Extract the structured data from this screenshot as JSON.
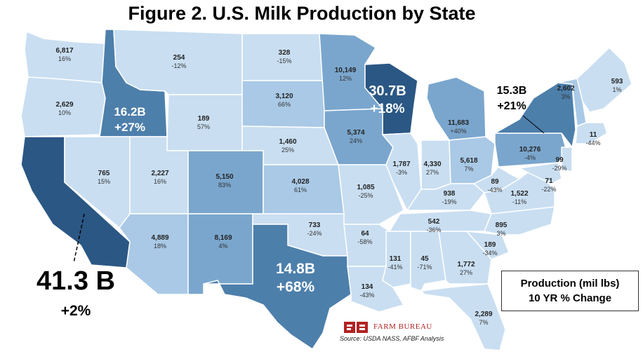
{
  "title": "Figure 2. U.S. Milk Production by State",
  "legend": {
    "line1": "Production (mil lbs)",
    "line2": "10 YR % Change"
  },
  "brand": "FARM BUREAU",
  "source": "Source:  USDA NASS, AFBF Analysis",
  "colors": {
    "darkest": "#2b5784",
    "dark": "#4d7fab",
    "mid": "#7aa6cd",
    "light": "#a9c9e6",
    "lightest": "#c9def1"
  },
  "states": {
    "WA": {
      "value": "6,817",
      "change": "16%"
    },
    "OR": {
      "value": "2,629",
      "change": "10%"
    },
    "ID": {
      "value": "16.2B",
      "change": "+27%"
    },
    "MT": {
      "value": "254",
      "change": "-12%"
    },
    "WY": {
      "value": "189",
      "change": "57%"
    },
    "ND": {
      "value": "328",
      "change": "-15%"
    },
    "SD": {
      "value": "3,120",
      "change": "66%"
    },
    "NE": {
      "value": "1,460",
      "change": "25%"
    },
    "NV": {
      "value": "765",
      "change": "15%"
    },
    "UT": {
      "value": "2,227",
      "change": "16%"
    },
    "CO": {
      "value": "5,150",
      "change": "83%"
    },
    "KS": {
      "value": "4,028",
      "change": "61%"
    },
    "AZ": {
      "value": "4,889",
      "change": "18%"
    },
    "NM": {
      "value": "8,169",
      "change": "4%"
    },
    "OK": {
      "value": "733",
      "change": "-24%"
    },
    "TX": {
      "value": "14.8B",
      "change": "+68%"
    },
    "CA": {
      "value": "41.3 B",
      "change": "+2%"
    },
    "MN": {
      "value": "10,149",
      "change": "12%"
    },
    "WI": {
      "value": "30.7B",
      "change": "+18%"
    },
    "IA": {
      "value": "5,374",
      "change": "24%"
    },
    "MO": {
      "value": "1,085",
      "change": "-25%"
    },
    "AR": {
      "value": "64",
      "change": "-58%"
    },
    "LA": {
      "value": "134",
      "change": "-43%"
    },
    "IL": {
      "value": "1,787",
      "change": "-3%"
    },
    "MI": {
      "value": "11,683",
      "change": "+40%"
    },
    "IN": {
      "value": "4,330",
      "change": "27%"
    },
    "OH": {
      "value": "5,618",
      "change": "7%"
    },
    "KY": {
      "value": "938",
      "change": "-19%"
    },
    "TN": {
      "value": "542",
      "change": "-36%"
    },
    "MS": {
      "value": "131",
      "change": "-41%"
    },
    "AL": {
      "value": "45",
      "change": "-71%"
    },
    "GA": {
      "value": "1,772",
      "change": "27%"
    },
    "FL": {
      "value": "2,289",
      "change": "7%"
    },
    "SC": {
      "value": "189",
      "change": "-34%"
    },
    "NC": {
      "value": "895",
      "change": "3%"
    },
    "VA": {
      "value": "1,522",
      "change": "-11%"
    },
    "WV": {
      "value": "89",
      "change": "-43%"
    },
    "PA": {
      "value": "10,276",
      "change": "-4%"
    },
    "NY": {
      "value": "15.3B",
      "change": "+21%"
    },
    "VT": {
      "value": "2,602",
      "change": "3%"
    },
    "ME": {
      "value": "593",
      "change": "1%"
    },
    "MA_CT": {
      "value": "11",
      "change": "-44%"
    },
    "NJ": {
      "value": "99",
      "change": "-29%"
    },
    "MD": {
      "value": "71",
      "change": "-22%"
    }
  }
}
